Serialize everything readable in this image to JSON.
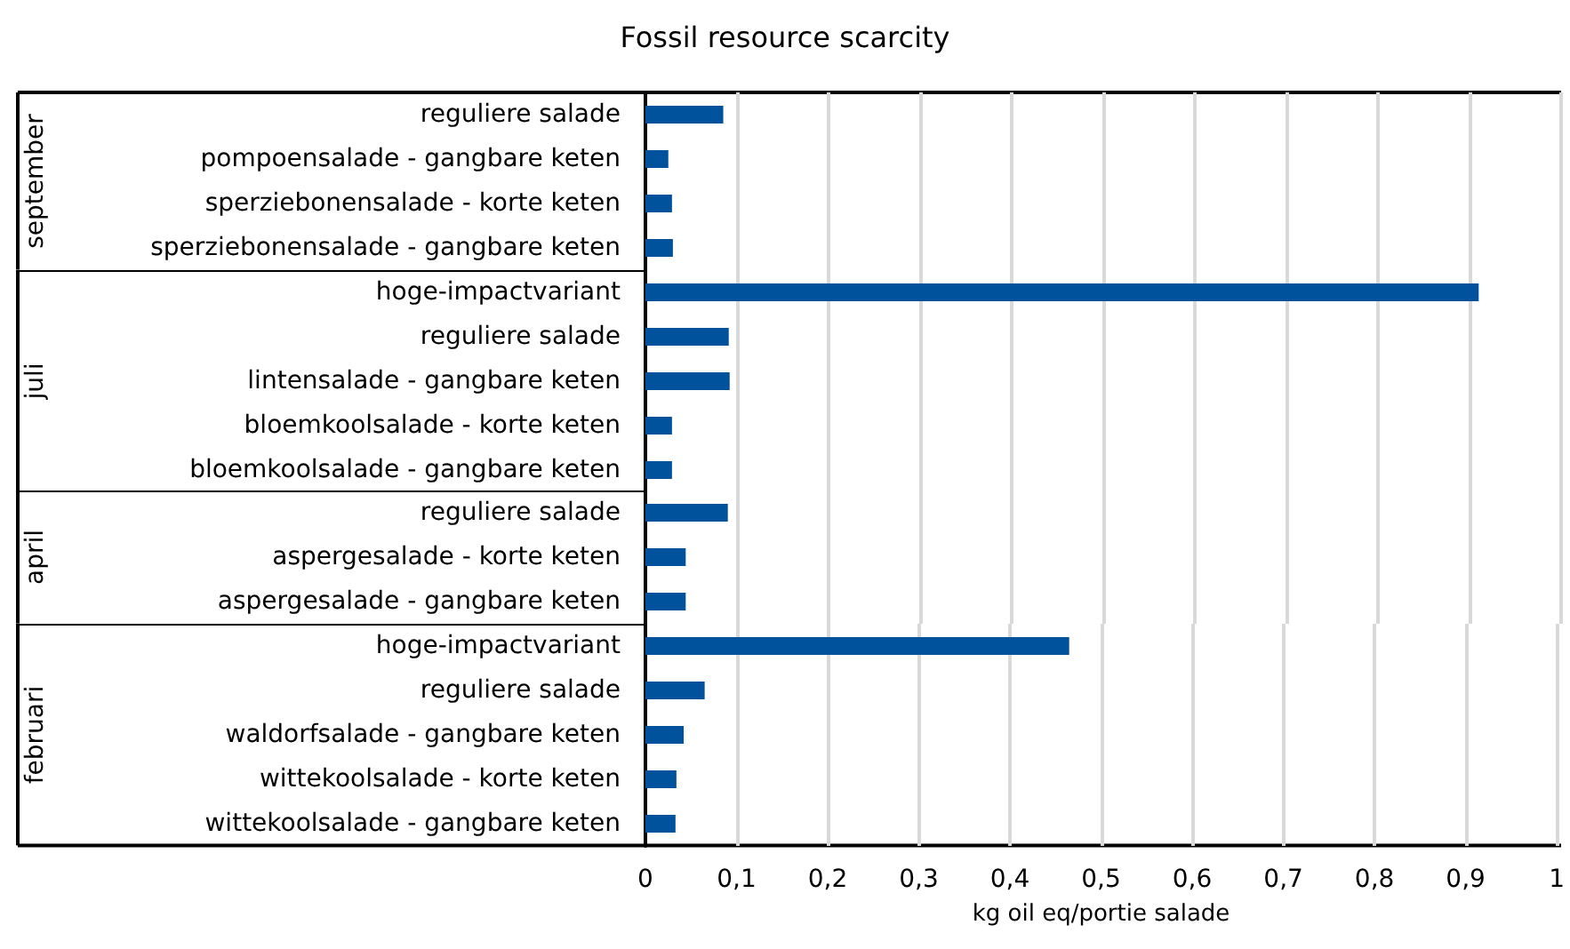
{
  "chart_data": [
    {
      "type": "bar",
      "orientation": "horizontal",
      "title": "Fossil resource scarcity",
      "ylabel": "september",
      "tick_labels": "y",
      "color": "#00529c",
      "grid": "x",
      "xlim": [
        0,
        1
      ],
      "categories": [
        "reguliere salade",
        "pompoensalade - gangbare keten",
        "sperziebonensalade - korte keten",
        "sperziebonensalade - gangbare keten"
      ],
      "values": [
        0.085,
        0.025,
        0.029,
        0.03
      ]
    },
    {
      "type": "bar",
      "orientation": "horizontal",
      "ylabel": "juli",
      "tick_labels": "y",
      "color": "#00529c",
      "grid": "x",
      "xlim": [
        0,
        1
      ],
      "categories": [
        "hoge-impactvariant",
        "reguliere salade",
        "lintensalade - gangbare keten",
        "bloemkoolsalade - korte keten",
        "bloemkoolsalade - gangbare keten"
      ],
      "values": [
        0.91,
        0.091,
        0.092,
        0.029,
        0.029
      ]
    },
    {
      "type": "bar",
      "orientation": "horizontal",
      "ylabel": "april",
      "tick_labels": "y",
      "color": "#00529c",
      "grid": "x",
      "xlim": [
        0,
        1
      ],
      "categories": [
        "reguliere salade",
        "aspergesalade - korte keten",
        "aspergesalade - gangbare keten"
      ],
      "values": [
        0.09,
        0.044,
        0.044
      ]
    },
    {
      "type": "bar",
      "orientation": "horizontal",
      "ylabel": "februari",
      "xlabel": "kg oil eq/portie salade",
      "color": "#00529c",
      "grid": "x",
      "xlim": [
        0,
        1
      ],
      "xticks": [
        {
          "value": 0,
          "label": "0"
        },
        {
          "value": 0.1,
          "label": "0,1"
        },
        {
          "value": 0.2,
          "label": "0,2"
        },
        {
          "value": 0.3,
          "label": "0,3"
        },
        {
          "value": 0.4,
          "label": "0,4"
        },
        {
          "value": 0.5,
          "label": "0,5"
        },
        {
          "value": 0.6,
          "label": "0,6"
        },
        {
          "value": 0.7,
          "label": "0,7"
        },
        {
          "value": 0.8,
          "label": "0,8"
        },
        {
          "value": 0.9,
          "label": "0,9"
        },
        {
          "value": 1,
          "label": "1"
        }
      ],
      "categories": [
        "hoge-impactvariant",
        "reguliere salade",
        "waldorfsalade - gangbare keten",
        "wittekoolsalade - korte keten",
        "wittekoolsalade - gangbare keten"
      ],
      "values": [
        0.465,
        0.065,
        0.042,
        0.034,
        0.033
      ]
    }
  ]
}
